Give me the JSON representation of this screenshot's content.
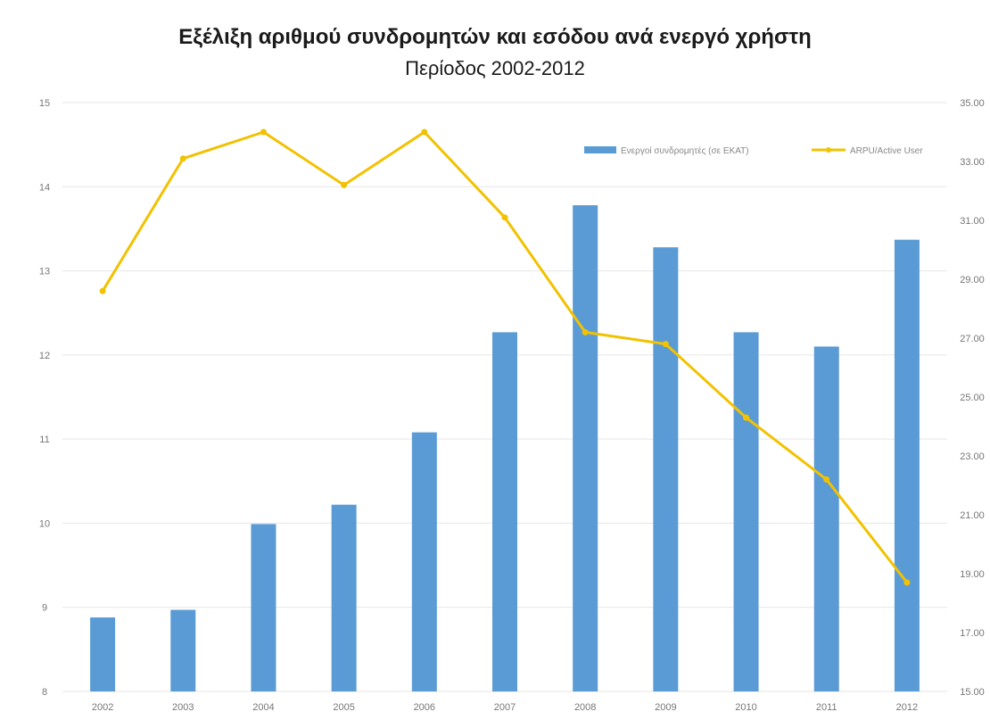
{
  "chart_data": {
    "type": "bar",
    "title": "Εξέλιξη αριθμού συνδρομητών και εσόδου ανά ενεργό χρήστη",
    "subtitle": "Περίοδος 2002-2012",
    "categories": [
      "2002",
      "2003",
      "2004",
      "2005",
      "2006",
      "2007",
      "2008",
      "2009",
      "2010",
      "2011",
      "2012"
    ],
    "y_left": {
      "min": 8,
      "max": 15,
      "step": 1,
      "ticks": [
        "8",
        "9",
        "10",
        "11",
        "12",
        "13",
        "14",
        "15"
      ]
    },
    "y_right": {
      "min": 15,
      "max": 35,
      "step": 2,
      "ticks": [
        "15.00",
        "17.00",
        "19.00",
        "21.00",
        "23.00",
        "25.00",
        "27.00",
        "29.00",
        "31.00",
        "33.00",
        "35.00"
      ]
    },
    "series": [
      {
        "name": "Ενεργοί συνδρομητές (σε ΕΚΑΤ)",
        "type": "bar",
        "axis": "left",
        "color": "#5B9BD5",
        "values": [
          8.88,
          8.97,
          9.99,
          10.22,
          11.08,
          12.27,
          13.78,
          13.28,
          12.27,
          12.1,
          13.37
        ]
      },
      {
        "name": "ARPU/Active User",
        "type": "line",
        "axis": "right",
        "color": "#F2C200",
        "values": [
          28.6,
          33.1,
          34.0,
          32.2,
          34.0,
          31.1,
          27.2,
          26.8,
          24.3,
          22.2,
          18.7
        ]
      }
    ],
    "grid": true,
    "legend_position": "top-right"
  }
}
